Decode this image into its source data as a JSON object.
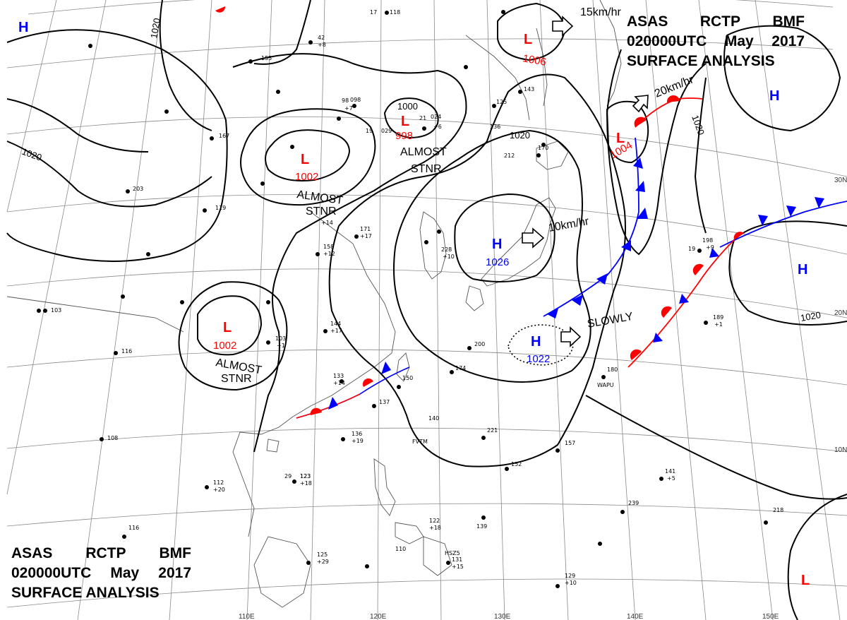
{
  "header_top_right": {
    "line1": [
      "ASAS",
      "RCTP",
      "BMF"
    ],
    "line2": [
      "020000UTC",
      "May",
      "2017"
    ],
    "line3": "SURFACE ANALYSIS"
  },
  "header_bottom_left": {
    "line1": [
      "ASAS",
      "RCTP",
      "BMF"
    ],
    "line2": [
      "020000UTC",
      "May",
      "2017"
    ],
    "line3": "SURFACE ANALYSIS"
  },
  "colors": {
    "low": "#ff0000",
    "high": "#0000ff",
    "warm_front": "#ff0000",
    "cold_front": "#0000ff",
    "isobar": "#000000",
    "graticule": "#777777",
    "coast": "#444444"
  },
  "lows": [
    {
      "id": "low-998",
      "letter": "L",
      "pressure": "998"
    },
    {
      "id": "low-1002-north",
      "letter": "L",
      "pressure": "1002"
    },
    {
      "id": "low-1002-south",
      "letter": "L",
      "pressure": "1002"
    },
    {
      "id": "low-1006",
      "letter": "L",
      "pressure": "1006"
    },
    {
      "id": "low-1004",
      "letter": "L",
      "pressure": "1004"
    },
    {
      "id": "low-southeast",
      "letter": "L"
    }
  ],
  "highs": [
    {
      "id": "high-1026",
      "letter": "H",
      "pressure": "1026"
    },
    {
      "id": "high-1022",
      "letter": "H",
      "pressure": "1022"
    },
    {
      "id": "high-east",
      "letter": "H"
    },
    {
      "id": "high-northeast",
      "letter": "H"
    },
    {
      "id": "high-northwest",
      "letter": "H"
    }
  ],
  "isobar_labels": [
    "1020",
    "1020",
    "1020",
    "1020",
    "1020",
    "1000"
  ],
  "annotations": {
    "almost_stnr": [
      "ALMOST",
      "STNR"
    ],
    "slowly": "SLOWLY",
    "speed_15": "15km/hr",
    "speed_20": "20km/hr",
    "speed_10": "10km/hr"
  },
  "graticule": {
    "lat": [
      "30N",
      "20N",
      "10N"
    ],
    "lon": [
      "110E",
      "120E",
      "130E",
      "140E",
      "150E"
    ]
  },
  "stations": [
    "118",
    "17",
    "123",
    "29",
    "98",
    "+7",
    "21",
    "19",
    "136",
    "125",
    "143",
    "212",
    "19",
    "170",
    "198",
    "+9",
    "189",
    "+1",
    "180",
    "200",
    "174",
    "150",
    "137",
    "140",
    "136",
    "+19",
    "221",
    "152",
    "157",
    "123",
    "+18",
    "112",
    "+20",
    "116",
    "108",
    "125",
    "+29",
    "110",
    "131",
    "+15",
    "122",
    "+18",
    "129",
    "+10",
    "141",
    "+5",
    "239",
    "218",
    "139",
    "144",
    "+17",
    "133",
    "+14",
    "103",
    "116",
    "158",
    "+12",
    "171",
    "+17",
    "228",
    "+10",
    "+14",
    "119",
    "203",
    "153",
    "167",
    "103",
    "+1",
    "42",
    "+8",
    "098",
    "029",
    "024",
    "+6"
  ],
  "station_codes": [
    "WAPU",
    "FVTM",
    "HSZ5"
  ]
}
